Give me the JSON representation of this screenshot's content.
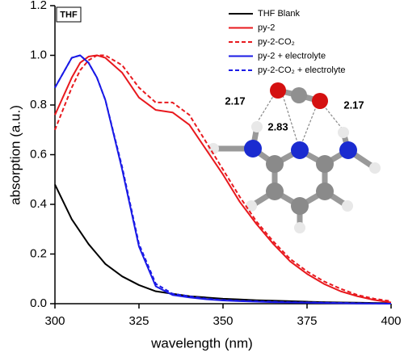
{
  "chart_data": {
    "type": "line",
    "box_label": "THF",
    "xlabel": "wavelength (nm)",
    "ylabel": "absorption (a.u.)",
    "distance_labels": [
      "2.17",
      "2.83",
      "2.17"
    ],
    "x": [
      300,
      305,
      307.5,
      310,
      312.5,
      315,
      320,
      325,
      330,
      335,
      340,
      345,
      350,
      355,
      360,
      365,
      370,
      375,
      380,
      385,
      390,
      395,
      400
    ],
    "xlim": [
      300,
      400
    ],
    "xticks": [
      300,
      325,
      350,
      375,
      400
    ],
    "ylim": [
      0,
      1.2
    ],
    "yticks": [
      {
        "value": 0,
        "label": "0.0"
      },
      0.2,
      0.4,
      0.6,
      0.8,
      {
        "value": 1,
        "label": "1.0"
      },
      1.2
    ],
    "legend": "upper right",
    "series": [
      {
        "name": "THF Blank",
        "color": "#000000",
        "dashed": false,
        "values": [
          0.48,
          0.34,
          0.29,
          0.24,
          0.2,
          0.16,
          0.11,
          0.075,
          0.05,
          0.04,
          0.03,
          0.025,
          0.02,
          0.017,
          0.014,
          0.012,
          0.01,
          0.008,
          0.006,
          0.005,
          0.004,
          0.003,
          0.002
        ]
      },
      {
        "name": "py-2",
        "color": "#e8191e",
        "dashed": false,
        "values": [
          0.76,
          0.91,
          0.97,
          0.995,
          1.0,
          0.99,
          0.93,
          0.83,
          0.78,
          0.77,
          0.72,
          0.62,
          0.52,
          0.41,
          0.32,
          0.24,
          0.17,
          0.12,
          0.08,
          0.05,
          0.03,
          0.015,
          0.005
        ]
      },
      {
        "name": "py-2-CO₂",
        "color": "#e8191e",
        "dashed": true,
        "values": [
          0.7,
          0.87,
          0.94,
          0.98,
          1.0,
          1.0,
          0.96,
          0.87,
          0.81,
          0.81,
          0.76,
          0.65,
          0.54,
          0.43,
          0.33,
          0.25,
          0.18,
          0.13,
          0.09,
          0.06,
          0.035,
          0.02,
          0.01
        ]
      },
      {
        "name": "py-2 + electrolyte",
        "color": "#1a1ae6",
        "dashed": false,
        "values": [
          0.87,
          0.99,
          1.0,
          0.97,
          0.91,
          0.82,
          0.54,
          0.23,
          0.07,
          0.035,
          0.025,
          0.018,
          0.013,
          0.01,
          0.008,
          0.006,
          0.005,
          0.004,
          0.003,
          0.002,
          0.001,
          0.001,
          0
        ]
      },
      {
        "name": "py-2-CO₂ + electrolyte",
        "color": "#1a1ae6",
        "dashed": true,
        "values": [
          0.87,
          0.99,
          1.0,
          0.97,
          0.91,
          0.82,
          0.55,
          0.24,
          0.08,
          0.04,
          0.03,
          0.02,
          0.015,
          0.012,
          0.01,
          0.008,
          0.006,
          0.005,
          0.004,
          0.003,
          0.002,
          0.001,
          0
        ]
      }
    ]
  }
}
